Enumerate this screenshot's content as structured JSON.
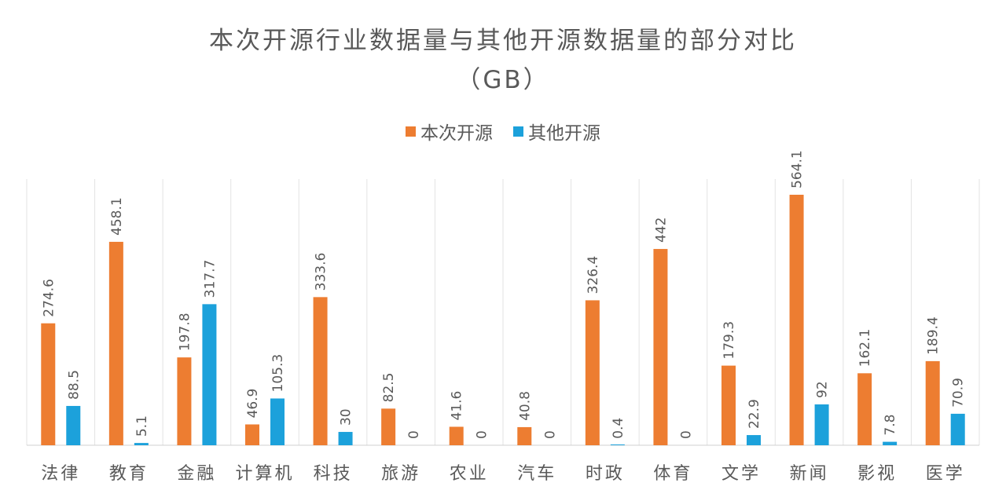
{
  "chart_data": {
    "type": "bar",
    "title": "本次开源行业数据量与其他开源数据量的部分对比",
    "subtitle": "（GB）",
    "categories": [
      "法律",
      "教育",
      "金融",
      "计算机",
      "科技",
      "旅游",
      "农业",
      "汽车",
      "时政",
      "体育",
      "文学",
      "新闻",
      "影视",
      "医学"
    ],
    "series": [
      {
        "name": "本次开源",
        "color": "#ED7D31",
        "values": [
          274.6,
          458.1,
          197.8,
          46.9,
          333.6,
          82.5,
          41.6,
          40.8,
          326.4,
          442,
          179.3,
          564.1,
          162.1,
          189.4
        ],
        "labels": [
          "274.6",
          "458.1",
          "197.8",
          "46.9",
          "333.6",
          "82.5",
          "41.6",
          "40.8",
          "326.4",
          "442",
          "179.3",
          "564.1",
          "162.1",
          "189.4"
        ]
      },
      {
        "name": "其他开源",
        "color": "#1CA1DB",
        "values": [
          88.5,
          5.1,
          317.7,
          105.3,
          30,
          0,
          0,
          0,
          0.4,
          0,
          22.9,
          92,
          7.8,
          70.9
        ],
        "labels": [
          "88.5",
          "5.1",
          "317.7",
          "105.3",
          "30",
          "0",
          "0",
          "0",
          "0.4",
          "0",
          "22.9",
          "92",
          "7.8",
          "70.9"
        ]
      }
    ],
    "xlabel": "",
    "ylabel": "",
    "ylim": [
      0,
      564.1
    ],
    "grid": "vertical-separators",
    "legend": "top-center"
  }
}
